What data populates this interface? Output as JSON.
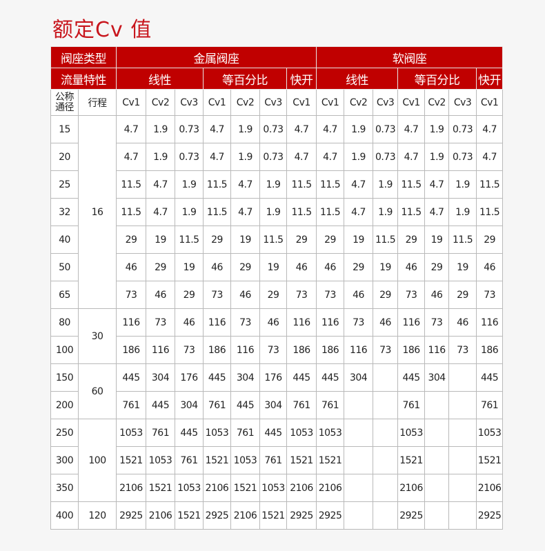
{
  "title": "额定Cv 值",
  "colors": {
    "accent": "#c00000",
    "title": "#c8161d"
  },
  "header": {
    "seat_type_label": "阀座类型",
    "metal_seat": "金属阀座",
    "soft_seat": "软阀座",
    "flow_char_label": "流量特性",
    "linear": "线性",
    "equal_percent": "等百分比",
    "quick_open": "快开",
    "dn_label": "公称通径",
    "stroke_label": "行程",
    "cv_cols": [
      "Cv1",
      "Cv2",
      "Cv3",
      "Cv1",
      "Cv2",
      "Cv3",
      "Cv1",
      "Cv1",
      "Cv2",
      "Cv3",
      "Cv1",
      "Cv2",
      "Cv3",
      "Cv1"
    ]
  },
  "strokes": [
    {
      "value": "16",
      "rows": 7
    },
    {
      "value": "30",
      "rows": 2
    },
    {
      "value": "60",
      "rows": 2
    },
    {
      "value": "100",
      "rows": 3
    },
    {
      "value": "120",
      "rows": 1
    }
  ],
  "rows": [
    {
      "dn": "15",
      "cv": [
        "4.7",
        "1.9",
        "0.73",
        "4.7",
        "1.9",
        "0.73",
        "4.7",
        "4.7",
        "1.9",
        "0.73",
        "4.7",
        "1.9",
        "0.73",
        "4.7"
      ]
    },
    {
      "dn": "20",
      "cv": [
        "4.7",
        "1.9",
        "0.73",
        "4.7",
        "1.9",
        "0.73",
        "4.7",
        "4.7",
        "1.9",
        "0.73",
        "4.7",
        "1.9",
        "0.73",
        "4.7"
      ]
    },
    {
      "dn": "25",
      "cv": [
        "11.5",
        "4.7",
        "1.9",
        "11.5",
        "4.7",
        "1.9",
        "11.5",
        "11.5",
        "4.7",
        "1.9",
        "11.5",
        "4.7",
        "1.9",
        "11.5"
      ]
    },
    {
      "dn": "32",
      "cv": [
        "11.5",
        "4.7",
        "1.9",
        "11.5",
        "4.7",
        "1.9",
        "11.5",
        "11.5",
        "4.7",
        "1.9",
        "11.5",
        "4.7",
        "1.9",
        "11.5"
      ]
    },
    {
      "dn": "40",
      "cv": [
        "29",
        "19",
        "11.5",
        "29",
        "19",
        "11.5",
        "29",
        "29",
        "19",
        "11.5",
        "29",
        "19",
        "11.5",
        "29"
      ]
    },
    {
      "dn": "50",
      "cv": [
        "46",
        "29",
        "19",
        "46",
        "29",
        "19",
        "46",
        "46",
        "29",
        "19",
        "46",
        "29",
        "19",
        "46"
      ]
    },
    {
      "dn": "65",
      "cv": [
        "73",
        "46",
        "29",
        "73",
        "46",
        "29",
        "73",
        "73",
        "46",
        "29",
        "73",
        "46",
        "29",
        "73"
      ]
    },
    {
      "dn": "80",
      "cv": [
        "116",
        "73",
        "46",
        "116",
        "73",
        "46",
        "116",
        "116",
        "73",
        "46",
        "116",
        "73",
        "46",
        "116"
      ]
    },
    {
      "dn": "100",
      "cv": [
        "186",
        "116",
        "73",
        "186",
        "116",
        "73",
        "186",
        "186",
        "116",
        "73",
        "186",
        "116",
        "73",
        "186"
      ]
    },
    {
      "dn": "150",
      "cv": [
        "445",
        "304",
        "176",
        "445",
        "304",
        "176",
        "445",
        "445",
        "304",
        "",
        "445",
        "304",
        "",
        "445"
      ]
    },
    {
      "dn": "200",
      "cv": [
        "761",
        "445",
        "304",
        "761",
        "445",
        "304",
        "761",
        "761",
        "",
        "",
        "761",
        "",
        "",
        "761"
      ]
    },
    {
      "dn": "250",
      "cv": [
        "1053",
        "761",
        "445",
        "1053",
        "761",
        "445",
        "1053",
        "1053",
        "",
        "",
        "1053",
        "",
        "",
        "1053"
      ]
    },
    {
      "dn": "300",
      "cv": [
        "1521",
        "1053",
        "761",
        "1521",
        "1053",
        "761",
        "1521",
        "1521",
        "",
        "",
        "1521",
        "",
        "",
        "1521"
      ]
    },
    {
      "dn": "350",
      "cv": [
        "2106",
        "1521",
        "1053",
        "2106",
        "1521",
        "1053",
        "2106",
        "2106",
        "",
        "",
        "2106",
        "",
        "",
        "2106"
      ]
    },
    {
      "dn": "400",
      "cv": [
        "2925",
        "2106",
        "1521",
        "2925",
        "2106",
        "1521",
        "2925",
        "2925",
        "",
        "",
        "2925",
        "",
        "",
        "2925"
      ]
    }
  ]
}
